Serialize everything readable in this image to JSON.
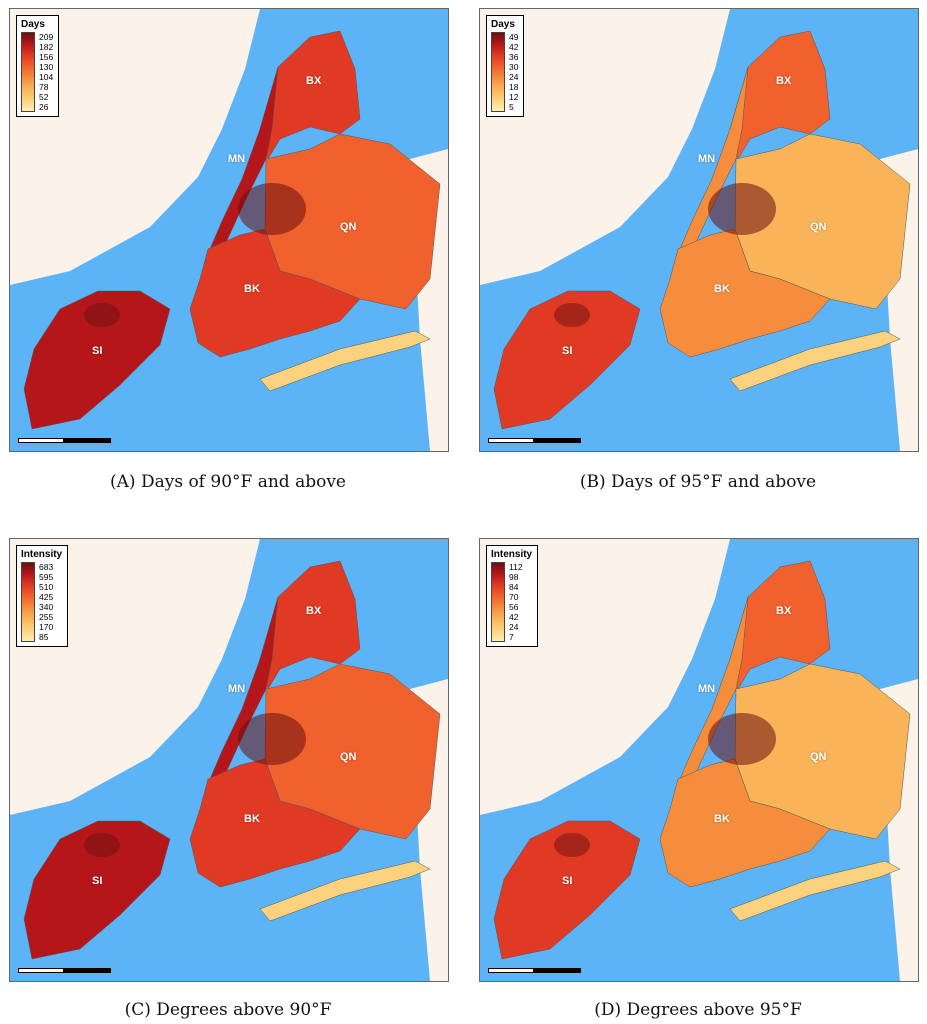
{
  "panels": [
    {
      "caption": "(A) Days of 90°F and above",
      "legend_title": "Days",
      "legend_ticks": [
        "209",
        "182",
        "156",
        "130",
        "104",
        "78",
        "52",
        "26"
      ],
      "intensity": "high",
      "boroughs": {
        "bx": "BX",
        "mn": "MN",
        "qn": "QN",
        "bk": "BK",
        "si": "SI"
      }
    },
    {
      "caption": "(B) Days of 95°F and above",
      "legend_title": "Days",
      "legend_ticks": [
        "49",
        "42",
        "36",
        "30",
        "24",
        "18",
        "12",
        "5"
      ],
      "intensity": "medium",
      "boroughs": {
        "bx": "BX",
        "mn": "MN",
        "qn": "QN",
        "bk": "BK",
        "si": "SI"
      }
    },
    {
      "caption": "(C) Degrees above 90°F",
      "legend_title": "Intensity",
      "legend_ticks": [
        "683",
        "595",
        "510",
        "425",
        "340",
        "255",
        "170",
        "85"
      ],
      "intensity": "high",
      "boroughs": {
        "bx": "BX",
        "mn": "MN",
        "qn": "QN",
        "bk": "BK",
        "si": "SI"
      }
    },
    {
      "caption": "(D) Degrees above 95°F",
      "legend_title": "Intensity",
      "legend_ticks": [
        "112",
        "98",
        "84",
        "70",
        "56",
        "42",
        "24",
        "7"
      ],
      "intensity": "medium",
      "boroughs": {
        "bx": "BX",
        "mn": "MN",
        "qn": "QN",
        "bk": "BK",
        "si": "SI"
      }
    }
  ],
  "colors": {
    "water": "#5cb3f5",
    "land": "#fbf2ea",
    "ramp": [
      "#6b0f0f",
      "#b5161a",
      "#e03a24",
      "#f0612e",
      "#f58d3c",
      "#f9b45a",
      "#fcd27e",
      "#fef0b0"
    ]
  }
}
